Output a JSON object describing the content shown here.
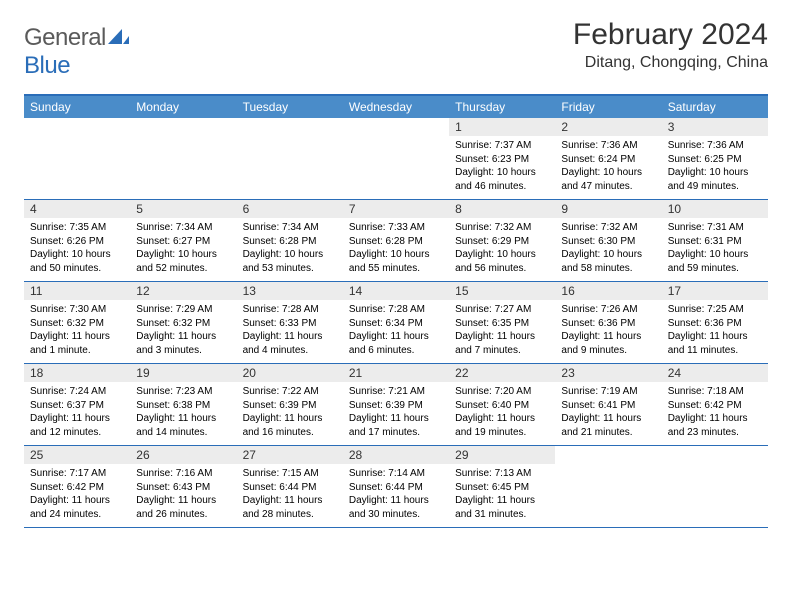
{
  "logo": {
    "gray": "General",
    "blue": "Blue"
  },
  "title": "February 2024",
  "location": "Ditang, Chongqing, China",
  "colors": {
    "header_bg": "#4a8cc9",
    "border": "#2a6db8",
    "daynum_bg": "#ececec",
    "logo_gray": "#5a5a5a",
    "logo_blue": "#2a6db8"
  },
  "day_names": [
    "Sunday",
    "Monday",
    "Tuesday",
    "Wednesday",
    "Thursday",
    "Friday",
    "Saturday"
  ],
  "weeks": [
    [
      {
        "empty": true
      },
      {
        "empty": true
      },
      {
        "empty": true
      },
      {
        "empty": true
      },
      {
        "day": "1",
        "sunrise": "Sunrise: 7:37 AM",
        "sunset": "Sunset: 6:23 PM",
        "daylight": "Daylight: 10 hours and 46 minutes."
      },
      {
        "day": "2",
        "sunrise": "Sunrise: 7:36 AM",
        "sunset": "Sunset: 6:24 PM",
        "daylight": "Daylight: 10 hours and 47 minutes."
      },
      {
        "day": "3",
        "sunrise": "Sunrise: 7:36 AM",
        "sunset": "Sunset: 6:25 PM",
        "daylight": "Daylight: 10 hours and 49 minutes."
      }
    ],
    [
      {
        "day": "4",
        "sunrise": "Sunrise: 7:35 AM",
        "sunset": "Sunset: 6:26 PM",
        "daylight": "Daylight: 10 hours and 50 minutes."
      },
      {
        "day": "5",
        "sunrise": "Sunrise: 7:34 AM",
        "sunset": "Sunset: 6:27 PM",
        "daylight": "Daylight: 10 hours and 52 minutes."
      },
      {
        "day": "6",
        "sunrise": "Sunrise: 7:34 AM",
        "sunset": "Sunset: 6:28 PM",
        "daylight": "Daylight: 10 hours and 53 minutes."
      },
      {
        "day": "7",
        "sunrise": "Sunrise: 7:33 AM",
        "sunset": "Sunset: 6:28 PM",
        "daylight": "Daylight: 10 hours and 55 minutes."
      },
      {
        "day": "8",
        "sunrise": "Sunrise: 7:32 AM",
        "sunset": "Sunset: 6:29 PM",
        "daylight": "Daylight: 10 hours and 56 minutes."
      },
      {
        "day": "9",
        "sunrise": "Sunrise: 7:32 AM",
        "sunset": "Sunset: 6:30 PM",
        "daylight": "Daylight: 10 hours and 58 minutes."
      },
      {
        "day": "10",
        "sunrise": "Sunrise: 7:31 AM",
        "sunset": "Sunset: 6:31 PM",
        "daylight": "Daylight: 10 hours and 59 minutes."
      }
    ],
    [
      {
        "day": "11",
        "sunrise": "Sunrise: 7:30 AM",
        "sunset": "Sunset: 6:32 PM",
        "daylight": "Daylight: 11 hours and 1 minute."
      },
      {
        "day": "12",
        "sunrise": "Sunrise: 7:29 AM",
        "sunset": "Sunset: 6:32 PM",
        "daylight": "Daylight: 11 hours and 3 minutes."
      },
      {
        "day": "13",
        "sunrise": "Sunrise: 7:28 AM",
        "sunset": "Sunset: 6:33 PM",
        "daylight": "Daylight: 11 hours and 4 minutes."
      },
      {
        "day": "14",
        "sunrise": "Sunrise: 7:28 AM",
        "sunset": "Sunset: 6:34 PM",
        "daylight": "Daylight: 11 hours and 6 minutes."
      },
      {
        "day": "15",
        "sunrise": "Sunrise: 7:27 AM",
        "sunset": "Sunset: 6:35 PM",
        "daylight": "Daylight: 11 hours and 7 minutes."
      },
      {
        "day": "16",
        "sunrise": "Sunrise: 7:26 AM",
        "sunset": "Sunset: 6:36 PM",
        "daylight": "Daylight: 11 hours and 9 minutes."
      },
      {
        "day": "17",
        "sunrise": "Sunrise: 7:25 AM",
        "sunset": "Sunset: 6:36 PM",
        "daylight": "Daylight: 11 hours and 11 minutes."
      }
    ],
    [
      {
        "day": "18",
        "sunrise": "Sunrise: 7:24 AM",
        "sunset": "Sunset: 6:37 PM",
        "daylight": "Daylight: 11 hours and 12 minutes."
      },
      {
        "day": "19",
        "sunrise": "Sunrise: 7:23 AM",
        "sunset": "Sunset: 6:38 PM",
        "daylight": "Daylight: 11 hours and 14 minutes."
      },
      {
        "day": "20",
        "sunrise": "Sunrise: 7:22 AM",
        "sunset": "Sunset: 6:39 PM",
        "daylight": "Daylight: 11 hours and 16 minutes."
      },
      {
        "day": "21",
        "sunrise": "Sunrise: 7:21 AM",
        "sunset": "Sunset: 6:39 PM",
        "daylight": "Daylight: 11 hours and 17 minutes."
      },
      {
        "day": "22",
        "sunrise": "Sunrise: 7:20 AM",
        "sunset": "Sunset: 6:40 PM",
        "daylight": "Daylight: 11 hours and 19 minutes."
      },
      {
        "day": "23",
        "sunrise": "Sunrise: 7:19 AM",
        "sunset": "Sunset: 6:41 PM",
        "daylight": "Daylight: 11 hours and 21 minutes."
      },
      {
        "day": "24",
        "sunrise": "Sunrise: 7:18 AM",
        "sunset": "Sunset: 6:42 PM",
        "daylight": "Daylight: 11 hours and 23 minutes."
      }
    ],
    [
      {
        "day": "25",
        "sunrise": "Sunrise: 7:17 AM",
        "sunset": "Sunset: 6:42 PM",
        "daylight": "Daylight: 11 hours and 24 minutes."
      },
      {
        "day": "26",
        "sunrise": "Sunrise: 7:16 AM",
        "sunset": "Sunset: 6:43 PM",
        "daylight": "Daylight: 11 hours and 26 minutes."
      },
      {
        "day": "27",
        "sunrise": "Sunrise: 7:15 AM",
        "sunset": "Sunset: 6:44 PM",
        "daylight": "Daylight: 11 hours and 28 minutes."
      },
      {
        "day": "28",
        "sunrise": "Sunrise: 7:14 AM",
        "sunset": "Sunset: 6:44 PM",
        "daylight": "Daylight: 11 hours and 30 minutes."
      },
      {
        "day": "29",
        "sunrise": "Sunrise: 7:13 AM",
        "sunset": "Sunset: 6:45 PM",
        "daylight": "Daylight: 11 hours and 31 minutes."
      },
      {
        "empty": true
      },
      {
        "empty": true
      }
    ]
  ]
}
